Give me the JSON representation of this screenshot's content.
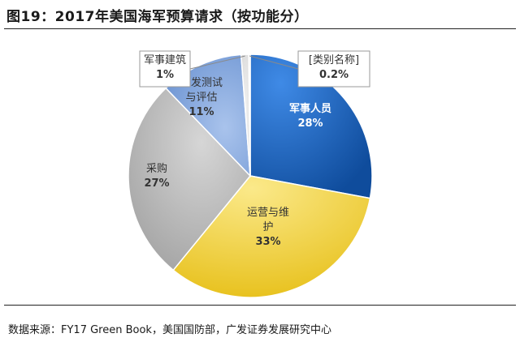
{
  "header": {
    "title": "图19：2017年美国海军预算请求（按功能分）"
  },
  "footer": {
    "source": "数据来源：FY17 Green Book，美国国防部，广发证券发展研究中心"
  },
  "chart_data": {
    "type": "pie",
    "title": "图19：2017年美国海军预算请求（按功能分）",
    "legend": "none",
    "slices": [
      {
        "label": "军事人员",
        "label_lines": [
          "军事人员"
        ],
        "value": 28,
        "value_label": "28%",
        "color": "#1f62b8"
      },
      {
        "label": "运营与维护",
        "label_lines": [
          "运营与维",
          "护"
        ],
        "value": 33,
        "value_label": "33%",
        "color": "#f2d548"
      },
      {
        "label": "采购",
        "label_lines": [
          "采购"
        ],
        "value": 27,
        "value_label": "27%",
        "color": "#b4b4b4"
      },
      {
        "label": "研发测试与评估",
        "label_lines": [
          "研发测试",
          "与评估"
        ],
        "value": 11,
        "value_label": "11%",
        "color": "#7fa4dc"
      },
      {
        "label": "军事建筑",
        "label_lines": [
          "军事建筑"
        ],
        "value": 1,
        "value_label": "1%",
        "color": "#d9d9d9"
      },
      {
        "label": "[类别名称]",
        "label_lines": [
          "[类别名称]"
        ],
        "value": 0.2,
        "value_label": "0.2%",
        "color": "#e8e8e8"
      }
    ]
  }
}
